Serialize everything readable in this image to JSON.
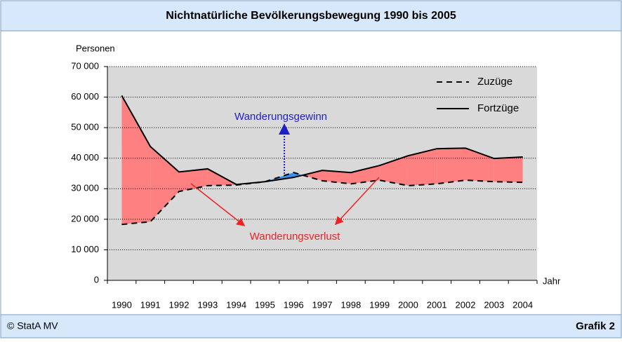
{
  "chart_data": {
    "type": "line",
    "title": "Nichtnatürliche Bevölkerungsbewegung 1990 bis 2005",
    "y_label": "Personen",
    "x_label": "Jahr",
    "categories": [
      "1990",
      "1991",
      "1992",
      "1993",
      "1994",
      "1995",
      "1996",
      "1997",
      "1998",
      "1999",
      "2000",
      "2001",
      "2002",
      "2003",
      "2004"
    ],
    "series": [
      {
        "name": "Zuzüge",
        "color": "#000000",
        "dash": true,
        "values": [
          18300,
          19200,
          29100,
          31000,
          31200,
          32300,
          35300,
          32600,
          31600,
          32800,
          31000,
          31600,
          32800,
          32300,
          32100
        ]
      },
      {
        "name": "Fortzüge",
        "color": "#000000",
        "dash": false,
        "values": [
          60500,
          43800,
          35500,
          36500,
          31400,
          32300,
          33700,
          36000,
          35300,
          37600,
          40800,
          43100,
          43300,
          39900,
          40400
        ]
      }
    ],
    "ylim": [
      0,
      70000
    ],
    "yticks": [
      0,
      {
        "value": 10000,
        "label": "10 000"
      },
      {
        "value": 20000,
        "label": "20 000"
      },
      {
        "value": 30000,
        "label": "30 000"
      },
      {
        "value": 40000,
        "label": "40 000"
      },
      {
        "value": 50000,
        "label": "50 000"
      },
      {
        "value": 60000,
        "label": "60 000"
      },
      {
        "value": 70000,
        "label": "70 000"
      }
    ],
    "grid": true,
    "legend": "upper right",
    "fill_loss": "#ff8080",
    "fill_gain": "#3a8ee6",
    "annotations": {
      "gain": {
        "text": "Wanderungsgewinn",
        "color": "#1f1fc8"
      },
      "loss": {
        "text": "Wanderungsverlust",
        "color": "#ee2222"
      }
    }
  },
  "footer": {
    "left": "© StatA MV",
    "right": "Grafik 2"
  }
}
